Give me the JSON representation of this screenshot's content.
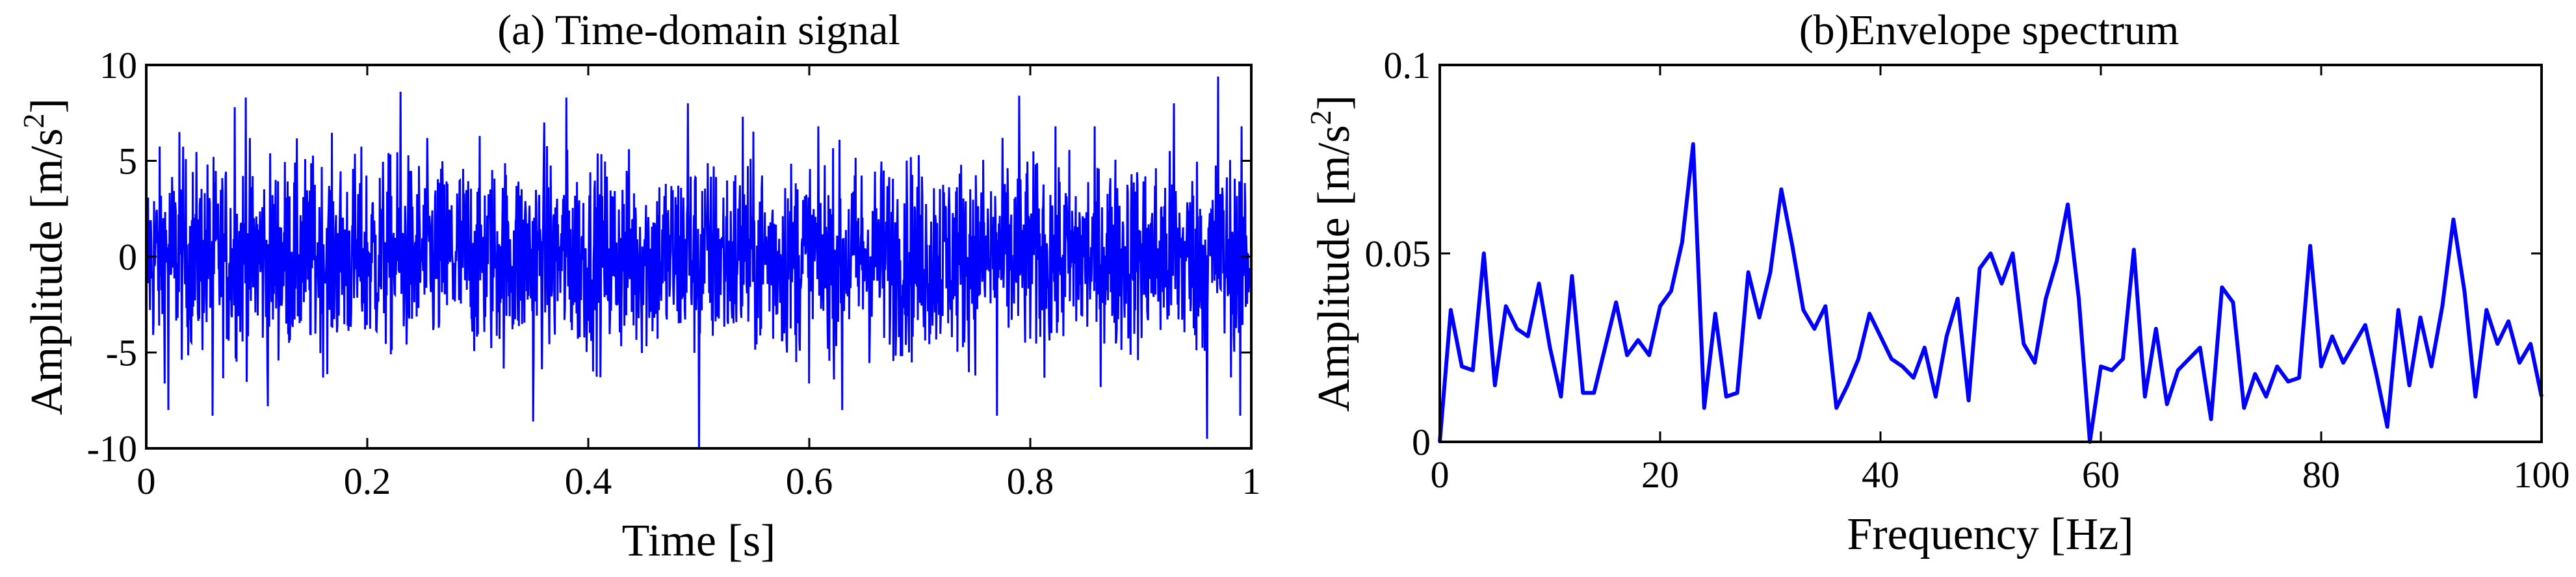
{
  "chart_data": [
    {
      "type": "line",
      "title": "(a) Time-domain signal",
      "xlabel": "Time [s]",
      "ylabel": "Amplitude [m/s",
      "ylabel_sup": "2",
      "ylabel_suffix": "]",
      "xlim": [
        0,
        1
      ],
      "ylim": [
        -10,
        10
      ],
      "xticks": [
        "0",
        "0.2",
        "0.4",
        "0.6",
        "0.8",
        "1"
      ],
      "yticks": [
        "-10",
        "-5",
        "0",
        "5",
        "10"
      ],
      "grid": false,
      "legend": "none",
      "color": "#0000ff",
      "signal": {
        "description": "dense noisy vibration signal",
        "samples": 2400,
        "typical_amplitude_range": [
          -6.5,
          6.5
        ],
        "peaks": [
          {
            "t": 0.03,
            "v": 6.5
          },
          {
            "t": 0.08,
            "v": 7.8
          },
          {
            "t": 0.09,
            "v": 8.3
          },
          {
            "t": 0.23,
            "v": 8.6
          },
          {
            "t": 0.36,
            "v": 7.0
          },
          {
            "t": 0.38,
            "v": 8.3
          },
          {
            "t": 0.49,
            "v": 8.0
          },
          {
            "t": 0.54,
            "v": 7.3
          },
          {
            "t": 0.63,
            "v": 7.8
          },
          {
            "t": 0.79,
            "v": 8.4
          },
          {
            "t": 0.93,
            "v": 8.0
          },
          {
            "t": 0.97,
            "v": 9.4
          }
        ],
        "troughs": [
          {
            "t": 0.02,
            "v": -8.0
          },
          {
            "t": 0.06,
            "v": -8.3
          },
          {
            "t": 0.11,
            "v": -7.8
          },
          {
            "t": 0.35,
            "v": -8.6
          },
          {
            "t": 0.5,
            "v": -10.0
          },
          {
            "t": 0.63,
            "v": -8.0
          },
          {
            "t": 0.77,
            "v": -8.3
          },
          {
            "t": 0.96,
            "v": -9.5
          },
          {
            "t": 0.99,
            "v": -8.3
          }
        ]
      }
    },
    {
      "type": "line",
      "title": "(b)Envelope spectrum",
      "xlabel": "Frequency [Hz]",
      "ylabel": "Amplitude [m/s",
      "ylabel_sup": "2",
      "ylabel_suffix": "]",
      "xlim": [
        0,
        100
      ],
      "ylim": [
        0,
        0.1
      ],
      "xticks": [
        "0",
        "20",
        "40",
        "60",
        "80",
        "100"
      ],
      "yticks": [
        "0",
        "0.05",
        "0.1"
      ],
      "grid": false,
      "legend": "none",
      "color": "#0000ff",
      "x": [
        0,
        1,
        2,
        3,
        4,
        5,
        6,
        7,
        8,
        9,
        10,
        11,
        12,
        13,
        14,
        15,
        16,
        17,
        18,
        19,
        20,
        21,
        22,
        23,
        24,
        25,
        26,
        27,
        28,
        29,
        30,
        31,
        32,
        33,
        34,
        35,
        36,
        37,
        38,
        39,
        40,
        41,
        42,
        43,
        44,
        45,
        46,
        47,
        48,
        49,
        50,
        51,
        52,
        53,
        54,
        55,
        56,
        57,
        58,
        59,
        60,
        61,
        62,
        63,
        64,
        65,
        66,
        67,
        68,
        69,
        70,
        71,
        72,
        73,
        74,
        75,
        76,
        77,
        78,
        79,
        80,
        81,
        82,
        83,
        84,
        85,
        86,
        87,
        88,
        89,
        90,
        91,
        92,
        93,
        94,
        95,
        96,
        97,
        98,
        99,
        100
      ],
      "values": [
        0.0,
        0.035,
        0.02,
        0.019,
        0.05,
        0.015,
        0.036,
        0.03,
        0.028,
        0.042,
        0.025,
        0.012,
        0.044,
        0.013,
        0.013,
        0.025,
        0.037,
        0.023,
        0.027,
        0.023,
        0.036,
        0.04,
        0.053,
        0.079,
        0.009,
        0.034,
        0.012,
        0.013,
        0.045,
        0.033,
        0.045,
        0.067,
        0.052,
        0.035,
        0.03,
        0.036,
        0.009,
        0.015,
        0.022,
        0.034,
        0.028,
        0.022,
        0.02,
        0.017,
        0.025,
        0.012,
        0.028,
        0.038,
        0.011,
        0.046,
        0.05,
        0.042,
        0.05,
        0.026,
        0.021,
        0.038,
        0.048,
        0.063,
        0.038,
        0.0,
        0.02,
        0.019,
        0.022,
        0.051,
        0.012,
        0.03,
        0.01,
        0.019,
        0.022,
        0.025,
        0.006,
        0.041,
        0.037,
        0.009,
        0.018,
        0.012,
        0.02,
        0.016,
        0.017,
        0.052,
        0.02,
        0.028,
        0.021,
        0.026,
        0.031,
        0.018,
        0.004,
        0.035,
        0.015,
        0.033,
        0.02,
        0.036,
        0.059,
        0.04,
        0.012,
        0.035,
        0.026,
        0.032,
        0.021,
        0.026,
        0.012
      ]
    }
  ]
}
